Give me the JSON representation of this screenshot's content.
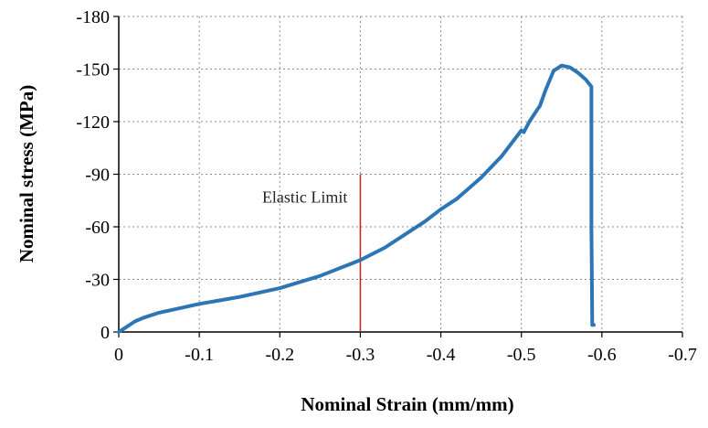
{
  "chart_data": {
    "type": "line",
    "title": "",
    "xlabel": "Nominal Strain (mm/mm)",
    "ylabel": "Nominal stress (MPa)",
    "xlim": [
      0,
      -0.7
    ],
    "ylim": [
      0,
      -180
    ],
    "x_ticks": [
      0,
      -0.1,
      -0.2,
      -0.3,
      -0.4,
      -0.5,
      -0.6,
      -0.7
    ],
    "x_tick_labels": [
      "0",
      "-0.1",
      "-0.2",
      "-0.3",
      "-0.4",
      "-0.5",
      "-0.6",
      "-0.7"
    ],
    "y_ticks": [
      0,
      -30,
      -60,
      -90,
      -120,
      -150,
      -180
    ],
    "y_tick_labels": [
      "0",
      "-30",
      "-60",
      "-90",
      "-120",
      "-150",
      "-180"
    ],
    "grid": true,
    "legend": "none",
    "series": [
      {
        "color": "#2e75b6",
        "x": [
          0,
          -0.01,
          -0.02,
          -0.03,
          -0.05,
          -0.08,
          -0.1,
          -0.15,
          -0.2,
          -0.25,
          -0.3,
          -0.33,
          -0.36,
          -0.38,
          -0.4,
          -0.42,
          -0.45,
          -0.475,
          -0.49,
          -0.5,
          -0.503,
          -0.51,
          -0.52,
          -0.523,
          -0.53,
          -0.54,
          -0.55,
          -0.56,
          -0.57,
          -0.58,
          -0.587,
          -0.587,
          -0.588,
          -0.59
        ],
        "y": [
          0,
          -3,
          -6,
          -8,
          -11,
          -14,
          -16,
          -20,
          -25,
          -32,
          -41,
          -48,
          -57,
          -63,
          -70,
          -76,
          -88,
          -100,
          -109,
          -115,
          -114,
          -120,
          -127,
          -129,
          -138,
          -149,
          -152,
          -151,
          -148,
          -144,
          -140,
          -60,
          -4,
          -4
        ]
      }
    ],
    "annotations": [
      {
        "text": "Elastic Limit",
        "x": -0.3,
        "y_from": 0,
        "y_to": -90,
        "color": "#cc1f1f"
      }
    ]
  }
}
